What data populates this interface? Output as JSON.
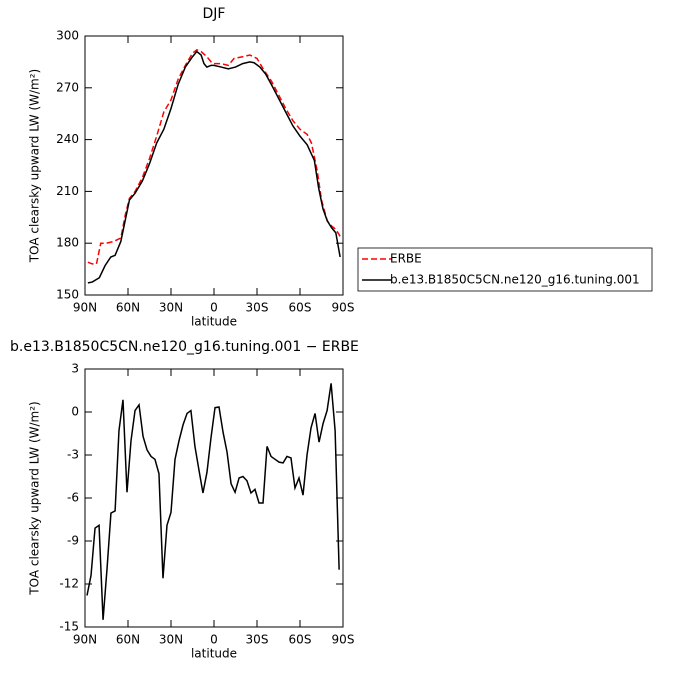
{
  "chart_data": [
    {
      "type": "line",
      "title": "DJF",
      "xlabel": "latitude",
      "ylabel": "TOA clearsky upward LW (W/m²)",
      "xlim": [
        90,
        -90
      ],
      "xticks": [
        {
          "value": 90,
          "label": "90N"
        },
        {
          "value": 60,
          "label": "60N"
        },
        {
          "value": 30,
          "label": "30N"
        },
        0,
        {
          "value": -30,
          "label": "30S"
        },
        {
          "value": -60,
          "label": "60S"
        },
        {
          "value": -90,
          "label": "90S"
        }
      ],
      "ylim": [
        150,
        300
      ],
      "yticks": [
        150,
        180,
        210,
        240,
        270,
        300
      ],
      "legend": "right",
      "series": [
        {
          "name": "ERBE",
          "color": "#ff0000",
          "line_style": "dashed",
          "x": [
            88,
            85,
            82,
            79,
            75,
            70,
            65,
            62,
            59,
            55,
            50,
            45,
            40,
            35,
            30,
            25,
            20,
            15,
            12,
            9,
            5,
            2,
            0,
            -5,
            -10,
            -14,
            -20,
            -25,
            -30,
            -35,
            -40,
            -45,
            -50,
            -55,
            -60,
            -65,
            -68,
            -72,
            -75,
            -79,
            -82,
            -85,
            -88
          ],
          "values": [
            169,
            168,
            168,
            180,
            180,
            181,
            183,
            196,
            206,
            210,
            218,
            229,
            242,
            256,
            263,
            275,
            283,
            290,
            292,
            291,
            288,
            285,
            284,
            284,
            283,
            287,
            288,
            289,
            287,
            280,
            274,
            266,
            258,
            251,
            246,
            243,
            238,
            222,
            205,
            193,
            190,
            188,
            184
          ]
        },
        {
          "name": "b.e13.B1850C5CN.ne120_g16.tuning.001",
          "color": "#000000",
          "line_style": "solid",
          "x": [
            88,
            85,
            80,
            76,
            72,
            69,
            65,
            62,
            59,
            55,
            50,
            45,
            40,
            35,
            30,
            25,
            20,
            15,
            12,
            9,
            7,
            5,
            2,
            0,
            -5,
            -10,
            -15,
            -20,
            -25,
            -28,
            -32,
            -36,
            -40,
            -45,
            -50,
            -55,
            -60,
            -65,
            -70,
            -73,
            -76,
            -79,
            -82,
            -85,
            -88
          ],
          "values": [
            157,
            157.5,
            160,
            167,
            172,
            173,
            181,
            193,
            205,
            209,
            216,
            226,
            238,
            246,
            258,
            272,
            282,
            288,
            291,
            289,
            284,
            282,
            283,
            283,
            282,
            281,
            282,
            284,
            285,
            284.5,
            282,
            278,
            272,
            264,
            256,
            248,
            242,
            237,
            228,
            212,
            200,
            193,
            189,
            186,
            172
          ]
        }
      ]
    },
    {
      "type": "line",
      "title": "b.e13.B1850C5CN.ne120_g16.tuning.001 − ERBE",
      "xlabel": "latitude",
      "ylabel": "TOA clearsky upward LW (W/m²)",
      "xlim": [
        90,
        -90
      ],
      "xticks": [
        {
          "value": 90,
          "label": "90N"
        },
        {
          "value": 60,
          "label": "60N"
        },
        {
          "value": 30,
          "label": "30N"
        },
        0,
        {
          "value": -30,
          "label": "30S"
        },
        {
          "value": -60,
          "label": "60S"
        },
        {
          "value": -90,
          "label": "90S"
        }
      ],
      "ylim": [
        -15,
        3
      ],
      "yticks": [
        -15,
        -12,
        -9,
        -6,
        -3,
        0,
        3
      ],
      "color": "#000000",
      "x": [
        88.6,
        85.8,
        83,
        80.2,
        77.4,
        74.6,
        71.9,
        69,
        66.3,
        63.5,
        60.7,
        57.9,
        55.1,
        52.3,
        49.5,
        46.7,
        43.9,
        41.2,
        38.4,
        35.6,
        32.8,
        30,
        27.2,
        24.4,
        21.6,
        18.8,
        16.1,
        13.3,
        10.5,
        7.7,
        4.9,
        2.1,
        -0.7,
        -3.5,
        -6.3,
        -9.1,
        -11.9,
        -14.7,
        -17.5,
        -20.2,
        -23,
        -25.8,
        -28.6,
        -31.4,
        -34.2,
        -37,
        -39.8,
        -42.6,
        -45.4,
        -48.2,
        -50.9,
        -53.7,
        -56.5,
        -59.3,
        -62.1,
        -64.9,
        -67.7,
        -70.5,
        -73.3,
        -76.1,
        -78.9,
        -81.7,
        -84.5,
        -87.3
      ],
      "values": [
        -12.8,
        -11.4,
        -8.1,
        -7.9,
        -14.5,
        -10.9,
        -7.05,
        -6.9,
        -1.3,
        0.85,
        -5.6,
        -2,
        0.1,
        0.5,
        -1.7,
        -2.65,
        -3.1,
        -3.3,
        -4.3,
        -11.6,
        -7.9,
        -7,
        -3.3,
        -2,
        -0.9,
        -0.1,
        0.1,
        -2.4,
        -4.05,
        -5.65,
        -4.2,
        -1.8,
        0.3,
        0.35,
        -1.4,
        -2.8,
        -5,
        -5.6,
        -4.6,
        -4.5,
        -4.8,
        -5.65,
        -5.4,
        -6.35,
        -6.35,
        -2.4,
        -3.1,
        -3.3,
        -3.5,
        -3.55,
        -3.1,
        -3.2,
        -5.3,
        -4.6,
        -5.8,
        -3,
        -1.1,
        -0.1,
        -2.1,
        -0.8,
        0.1,
        2.0,
        -1.3,
        -11
      ]
    }
  ]
}
